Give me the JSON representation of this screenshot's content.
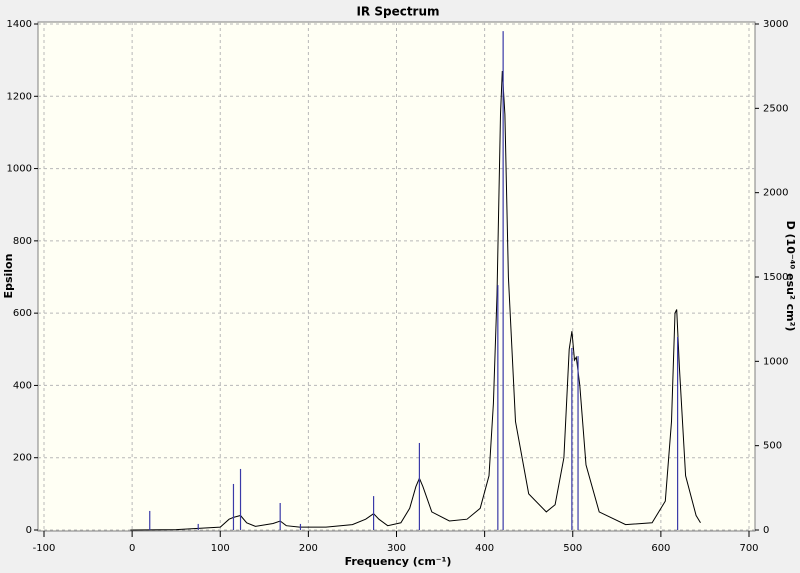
{
  "chart_data": {
    "type": "line",
    "title": "IR Spectrum",
    "x_label": "Frequency (cm⁻¹)",
    "y_label": "Epsilon",
    "y2_label": "D (10⁻⁴⁰ esu² cm²)",
    "xlim": [
      -100,
      700
    ],
    "xticks": [
      -100,
      0,
      100,
      200,
      300,
      400,
      500,
      600,
      700
    ],
    "ylim": [
      0,
      1400
    ],
    "yticks": [
      0,
      200,
      400,
      600,
      800,
      1000,
      1200,
      1400
    ],
    "y2lim": [
      0,
      3000
    ],
    "y2ticks": [
      0,
      500,
      1000,
      1500,
      2000,
      2500,
      3000
    ],
    "grid": true,
    "series": [
      {
        "style": "line",
        "color": "#000000",
        "x": [
          -2,
          50,
          100,
          110,
          115,
          123,
          130,
          140,
          160,
          168,
          175,
          190,
          220,
          250,
          265,
          274,
          280,
          290,
          305,
          315,
          322,
          326,
          330,
          340,
          360,
          380,
          395,
          405,
          410,
          414,
          418,
          420,
          423,
          427,
          435,
          450,
          470,
          480,
          490,
          496,
          499,
          502,
          504,
          508,
          515,
          530,
          560,
          590,
          605,
          612,
          616,
          618,
          621,
          628,
          640,
          645
        ],
        "values": [
          0,
          1,
          8,
          30,
          35,
          40,
          20,
          10,
          18,
          25,
          12,
          8,
          8,
          15,
          30,
          45,
          30,
          12,
          20,
          60,
          120,
          143,
          120,
          50,
          25,
          30,
          60,
          150,
          350,
          650,
          1150,
          1270,
          1150,
          700,
          300,
          100,
          50,
          70,
          200,
          500,
          550,
          470,
          478,
          400,
          180,
          50,
          15,
          20,
          80,
          300,
          600,
          610,
          450,
          150,
          40,
          20
        ]
      },
      {
        "style": "stick",
        "axis": "y2",
        "color": "#3a3aa8",
        "x": [
          20,
          75,
          115,
          123,
          168,
          191,
          274,
          326,
          415,
          421,
          499,
          506,
          619
        ],
        "values": [
          113,
          36,
          273,
          362,
          160,
          36,
          201,
          516,
          1452,
          2958,
          1079,
          1031,
          1144
        ]
      }
    ]
  }
}
